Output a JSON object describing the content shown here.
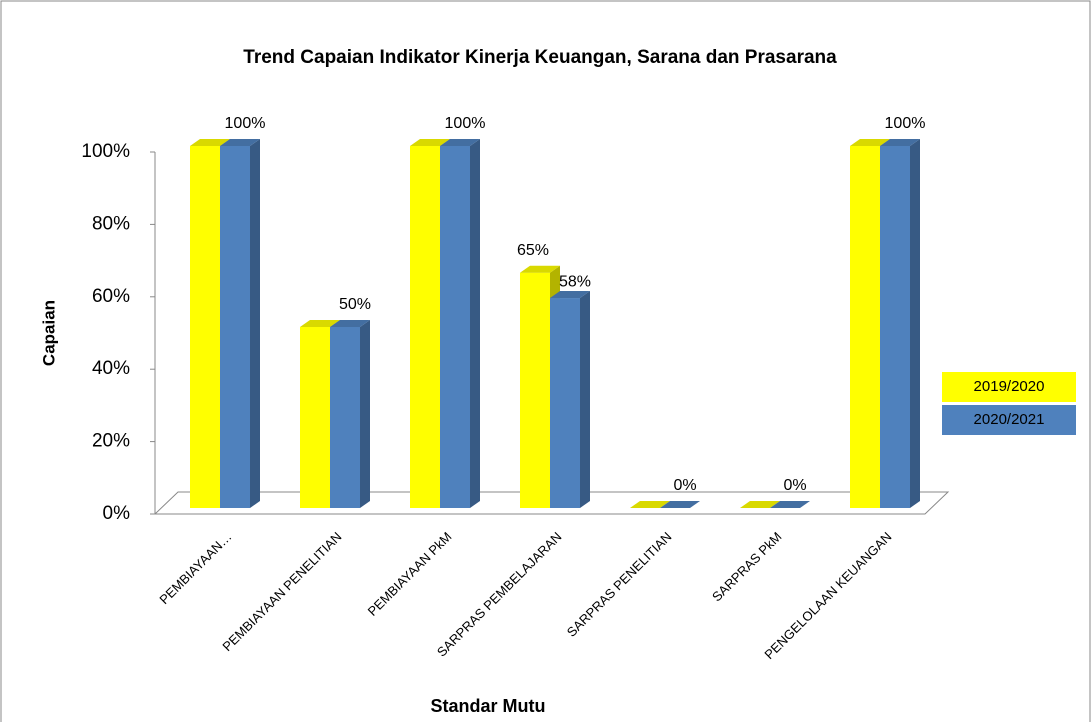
{
  "chart_data": {
    "type": "bar3d",
    "title": "Trend Capaian Indikator Kinerja  Keuangan, Sarana dan  Prasarana",
    "x_label": "Standar Mutu",
    "y_label": "Capaian",
    "categories": [
      "PEMBIAYAAN…",
      "PEMBIAYAAN PENELITIAN",
      "PEMBIAYAAN PkM",
      "SARPRAS PEMBELAJARAN",
      "SARPRAS PENELITIAN",
      "SARPRAS PkM",
      "PENGELOLAAN KEUANGAN"
    ],
    "series": [
      {
        "name": "2019/2020",
        "color": "#ffff00",
        "values": [
          100,
          50,
          100,
          65,
          0,
          0,
          100
        ],
        "value_labels": [
          null,
          null,
          null,
          "65%",
          null,
          null,
          null
        ]
      },
      {
        "name": "2020/2021",
        "color": "#4f81bd",
        "values": [
          100,
          50,
          100,
          58,
          0,
          0,
          100
        ],
        "value_labels": [
          "100%",
          "50%",
          "100%",
          "58%",
          "0%",
          "0%",
          "100%"
        ]
      }
    ],
    "ylim": [
      0,
      100
    ],
    "yticks": [
      {
        "value": 0,
        "label": "0%"
      },
      {
        "value": 20,
        "label": "20%"
      },
      {
        "value": 40,
        "label": "40%"
      },
      {
        "value": 60,
        "label": "60%"
      },
      {
        "value": 80,
        "label": "80%"
      },
      {
        "value": 100,
        "label": "100%"
      }
    ],
    "legend": "right"
  }
}
